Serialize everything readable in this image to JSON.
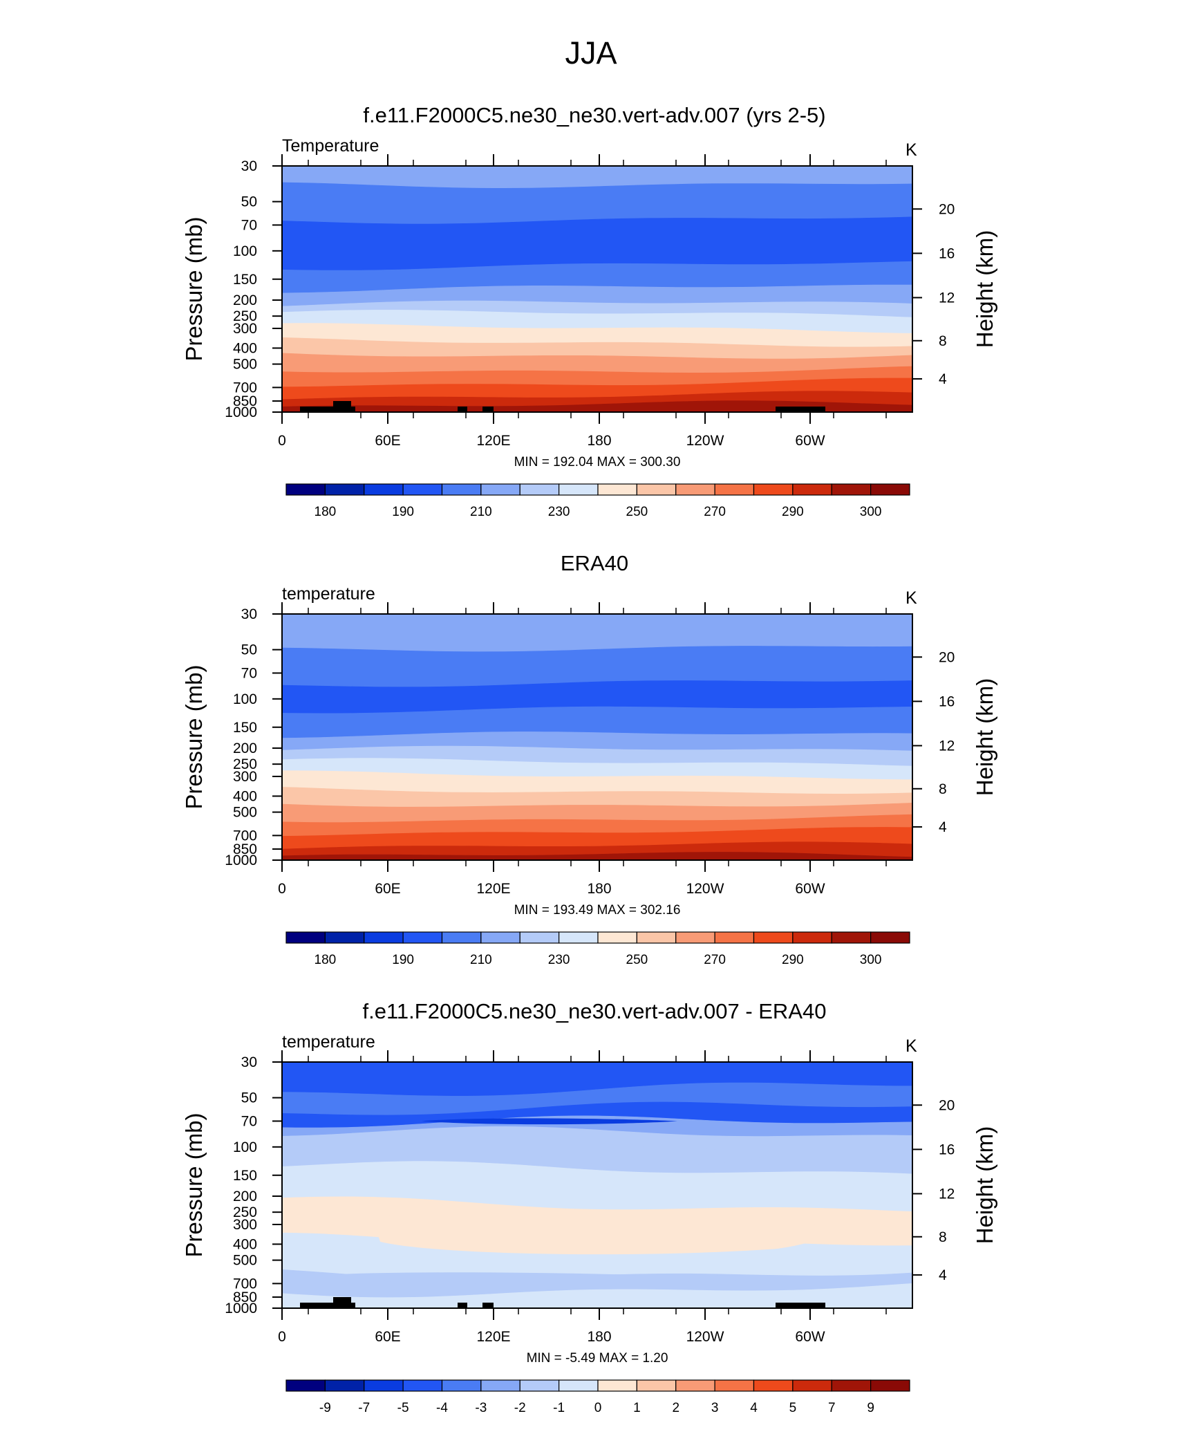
{
  "figure": {
    "title": "JJA"
  },
  "panels": [
    {
      "id": "model",
      "title": "f.e11.F2000C5.ne30_ne30.vert-adv.007 (yrs 2-5)",
      "left_label": "Temperature",
      "units": "K",
      "stats": "MIN = 192.04  MAX = 300.30",
      "ylabel_left": "Pressure (mb)",
      "ylabel_right": "Height (km)",
      "xticks": [
        "0",
        "60E",
        "120E",
        "180",
        "120W",
        "60W"
      ],
      "pressure_ticks": [
        "30",
        "50",
        "70",
        "100",
        "150",
        "200",
        "250",
        "300",
        "400",
        "500",
        "700",
        "850",
        "1000"
      ],
      "height_ticks": [
        "20",
        "16",
        "12",
        "8",
        "4"
      ],
      "colorbar_labels": [
        "180",
        "190",
        "210",
        "230",
        "250",
        "270",
        "290",
        "300"
      ]
    },
    {
      "id": "obs",
      "title": "ERA40",
      "left_label": "temperature",
      "units": "K",
      "stats": "MIN = 193.49  MAX = 302.16",
      "ylabel_left": "Pressure (mb)",
      "ylabel_right": "Height (km)",
      "xticks": [
        "0",
        "60E",
        "120E",
        "180",
        "120W",
        "60W"
      ],
      "pressure_ticks": [
        "30",
        "50",
        "70",
        "100",
        "150",
        "200",
        "250",
        "300",
        "400",
        "500",
        "700",
        "850",
        "1000"
      ],
      "height_ticks": [
        "20",
        "16",
        "12",
        "8",
        "4"
      ],
      "colorbar_labels": [
        "180",
        "190",
        "210",
        "230",
        "250",
        "270",
        "290",
        "300"
      ]
    },
    {
      "id": "diff",
      "title": "f.e11.F2000C5.ne30_ne30.vert-adv.007 - ERA40",
      "left_label": "temperature",
      "units": "K",
      "stats": "MIN =  -5.49  MAX =   1.20",
      "ylabel_left": "Pressure (mb)",
      "ylabel_right": "Height (km)",
      "xticks": [
        "0",
        "60E",
        "120E",
        "180",
        "120W",
        "60W"
      ],
      "pressure_ticks": [
        "30",
        "50",
        "70",
        "100",
        "150",
        "200",
        "250",
        "300",
        "400",
        "500",
        "700",
        "850",
        "1000"
      ],
      "height_ticks": [
        "20",
        "16",
        "12",
        "8",
        "4"
      ],
      "colorbar_labels": [
        "-9",
        "-7",
        "-5",
        "-4",
        "-3",
        "-2",
        "-1",
        "0",
        "1",
        "2",
        "3",
        "4",
        "5",
        "7",
        "9"
      ]
    }
  ],
  "palette": [
    "#00007f",
    "#0022a8",
    "#0a3ce0",
    "#2256f4",
    "#4a7cf4",
    "#86a8f6",
    "#b4cbf8",
    "#d6e6fa",
    "#fde7d4",
    "#fbc6a8",
    "#f89b76",
    "#f57346",
    "#ee4a1c",
    "#cc2a0c",
    "#a01508",
    "#8a0a06"
  ],
  "chart_data": [
    {
      "type": "heatmap",
      "title": "f.e11.F2000C5.ne30_ne30.vert-adv.007 (yrs 2-5)",
      "variable": "Temperature",
      "units": "K",
      "x": [
        "0",
        "60E",
        "120E",
        "180",
        "120W",
        "60W"
      ],
      "y_pressure": [
        30,
        50,
        70,
        100,
        150,
        200,
        250,
        300,
        400,
        500,
        700,
        850,
        1000
      ],
      "y_height_km": [
        20,
        16,
        12,
        8,
        4
      ],
      "contour_levels": [
        180,
        185,
        190,
        200,
        210,
        220,
        230,
        240,
        250,
        260,
        270,
        280,
        290,
        295,
        300
      ],
      "min": 192.04,
      "max": 300.3,
      "approx_zonal_profile": [
        {
          "p": 30,
          "value": 222
        },
        {
          "p": 50,
          "value": 212
        },
        {
          "p": 70,
          "value": 207
        },
        {
          "p": 100,
          "value": 200
        },
        {
          "p": 150,
          "value": 210
        },
        {
          "p": 200,
          "value": 220
        },
        {
          "p": 250,
          "value": 230
        },
        {
          "p": 300,
          "value": 240
        },
        {
          "p": 400,
          "value": 252
        },
        {
          "p": 500,
          "value": 262
        },
        {
          "p": 700,
          "value": 278
        },
        {
          "p": 850,
          "value": 287
        },
        {
          "p": 1000,
          "value": 295
        }
      ]
    },
    {
      "type": "heatmap",
      "title": "ERA40",
      "variable": "temperature",
      "units": "K",
      "x": [
        "0",
        "60E",
        "120E",
        "180",
        "120W",
        "60W"
      ],
      "y_pressure": [
        30,
        50,
        70,
        100,
        150,
        200,
        250,
        300,
        400,
        500,
        700,
        850,
        1000
      ],
      "y_height_km": [
        20,
        16,
        12,
        8,
        4
      ],
      "contour_levels": [
        180,
        185,
        190,
        200,
        210,
        220,
        230,
        240,
        250,
        260,
        270,
        280,
        290,
        295,
        300
      ],
      "min": 193.49,
      "max": 302.16,
      "approx_zonal_profile": [
        {
          "p": 30,
          "value": 222
        },
        {
          "p": 50,
          "value": 214
        },
        {
          "p": 70,
          "value": 208
        },
        {
          "p": 100,
          "value": 202
        },
        {
          "p": 150,
          "value": 211
        },
        {
          "p": 200,
          "value": 221
        },
        {
          "p": 250,
          "value": 231
        },
        {
          "p": 300,
          "value": 241
        },
        {
          "p": 400,
          "value": 253
        },
        {
          "p": 500,
          "value": 263
        },
        {
          "p": 700,
          "value": 279
        },
        {
          "p": 850,
          "value": 288
        },
        {
          "p": 1000,
          "value": 296
        }
      ]
    },
    {
      "type": "heatmap",
      "title": "f.e11.F2000C5.ne30_ne30.vert-adv.007 - ERA40",
      "variable": "temperature",
      "units": "K",
      "x": [
        "0",
        "60E",
        "120E",
        "180",
        "120W",
        "60W"
      ],
      "y_pressure": [
        30,
        50,
        70,
        100,
        150,
        200,
        250,
        300,
        400,
        500,
        700,
        850,
        1000
      ],
      "y_height_km": [
        20,
        16,
        12,
        8,
        4
      ],
      "contour_levels": [
        -9,
        -7,
        -5,
        -4,
        -3,
        -2,
        -1,
        0,
        1,
        2,
        3,
        4,
        5,
        7,
        9
      ],
      "min": -5.49,
      "max": 1.2
    }
  ]
}
